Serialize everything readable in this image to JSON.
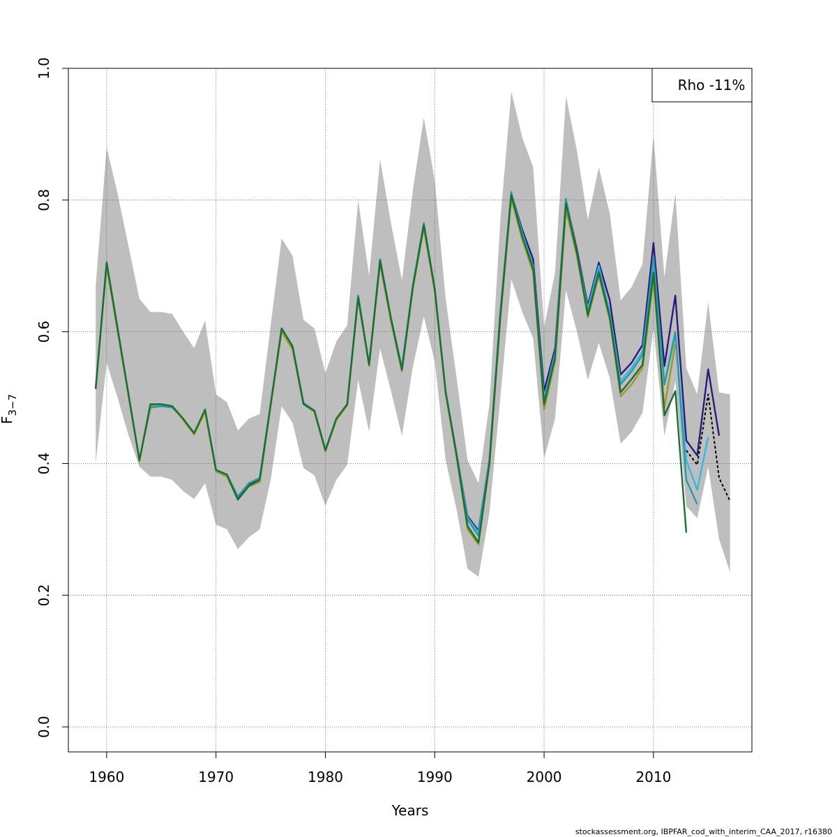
{
  "chart_data": {
    "type": "line",
    "xlabel": "Years",
    "ylabel_main": "F",
    "ylabel_sub": "3−7",
    "xlim": [
      1956.5,
      2019
    ],
    "ylim": [
      -0.038,
      1.0
    ],
    "xticks": [
      {
        "value": 1960,
        "label": "1960"
      },
      {
        "value": 1970,
        "label": "1970"
      },
      {
        "value": 1980,
        "label": "1980"
      },
      {
        "value": 1990,
        "label": "1990"
      },
      {
        "value": 2000,
        "label": "2000"
      },
      {
        "value": 2010,
        "label": "2010"
      }
    ],
    "yticks": [
      {
        "value": 0.0,
        "label": "0.0"
      },
      {
        "value": 0.2,
        "label": "0.2"
      },
      {
        "value": 0.4,
        "label": "0.4"
      },
      {
        "value": 0.6,
        "label": "0.6"
      },
      {
        "value": 0.8,
        "label": "0.8"
      },
      {
        "value": 1.0,
        "label": "1.0"
      }
    ],
    "grid": true,
    "legend": {
      "position": "top-right",
      "text": "Rho -11%"
    },
    "colors": {
      "band": "#bebebe",
      "grid": "#555555"
    },
    "band": {
      "x": [
        1959,
        1960,
        1961,
        1962,
        1963,
        1964,
        1965,
        1966,
        1967,
        1968,
        1969,
        1970,
        1971,
        1972,
        1973,
        1974,
        1975,
        1976,
        1977,
        1978,
        1979,
        1980,
        1981,
        1982,
        1983,
        1984,
        1985,
        1986,
        1987,
        1988,
        1989,
        1990,
        1991,
        1992,
        1993,
        1994,
        1995,
        1996,
        1997,
        1998,
        1999,
        2000,
        2001,
        2002,
        2003,
        2004,
        2005,
        2006,
        2007,
        2008,
        2009,
        2010,
        2011,
        2012,
        2013,
        2014,
        2015,
        2016,
        2017
      ],
      "upper": [
        0.67,
        0.88,
        0.81,
        0.73,
        0.65,
        0.63,
        0.63,
        0.627,
        0.6,
        0.575,
        0.617,
        0.505,
        0.493,
        0.45,
        0.468,
        0.475,
        0.61,
        0.742,
        0.715,
        0.618,
        0.605,
        0.537,
        0.585,
        0.61,
        0.8,
        0.685,
        0.862,
        0.765,
        0.678,
        0.815,
        0.925,
        0.83,
        0.65,
        0.53,
        0.405,
        0.37,
        0.49,
        0.77,
        0.965,
        0.895,
        0.85,
        0.607,
        0.69,
        0.958,
        0.875,
        0.77,
        0.85,
        0.78,
        0.648,
        0.668,
        0.703,
        0.898,
        0.683,
        0.81,
        0.545,
        0.505,
        0.645,
        0.508,
        0.505
      ],
      "lower": [
        0.4,
        0.553,
        0.5,
        0.443,
        0.395,
        0.38,
        0.38,
        0.375,
        0.358,
        0.346,
        0.37,
        0.307,
        0.3,
        0.27,
        0.288,
        0.3,
        0.375,
        0.487,
        0.462,
        0.393,
        0.382,
        0.336,
        0.375,
        0.398,
        0.527,
        0.448,
        0.575,
        0.51,
        0.442,
        0.547,
        0.623,
        0.555,
        0.405,
        0.33,
        0.24,
        0.228,
        0.325,
        0.5,
        0.68,
        0.63,
        0.59,
        0.408,
        0.468,
        0.663,
        0.6,
        0.527,
        0.583,
        0.53,
        0.43,
        0.448,
        0.477,
        0.605,
        0.442,
        0.525,
        0.335,
        0.317,
        0.395,
        0.285,
        0.235
      ]
    },
    "series": [
      {
        "color": "#2a1b7a",
        "dashed": false,
        "x": [
          1959,
          1960,
          1961,
          1962,
          1963,
          1964,
          1965,
          1966,
          1967,
          1968,
          1969,
          1970,
          1971,
          1972,
          1973,
          1974,
          1975,
          1976,
          1977,
          1978,
          1979,
          1980,
          1981,
          1982,
          1983,
          1984,
          1985,
          1986,
          1987,
          1988,
          1989,
          1990,
          1991,
          1992,
          1993,
          1994,
          1995,
          1996,
          1997,
          1998,
          1999,
          2000,
          2001,
          2002,
          2003,
          2004,
          2005,
          2006,
          2007,
          2008,
          2009,
          2010,
          2011,
          2012,
          2013,
          2014,
          2015,
          2016
        ],
        "y": [
          0.515,
          0.705,
          0.605,
          0.505,
          0.405,
          0.485,
          0.487,
          0.485,
          0.468,
          0.445,
          0.48,
          0.39,
          0.383,
          0.348,
          0.368,
          0.378,
          0.49,
          0.605,
          0.578,
          0.492,
          0.48,
          0.42,
          0.468,
          0.49,
          0.655,
          0.55,
          0.71,
          0.62,
          0.545,
          0.67,
          0.765,
          0.665,
          0.508,
          0.415,
          0.32,
          0.298,
          0.405,
          0.63,
          0.81,
          0.755,
          0.71,
          0.51,
          0.575,
          0.8,
          0.725,
          0.64,
          0.705,
          0.648,
          0.535,
          0.553,
          0.58,
          0.735,
          0.548,
          0.655,
          0.435,
          0.412,
          0.543,
          0.442
        ]
      },
      {
        "color": "#35b8e0",
        "dashed": false,
        "x": [
          1959,
          1960,
          1961,
          1962,
          1963,
          1964,
          1965,
          1966,
          1967,
          1968,
          1969,
          1970,
          1971,
          1972,
          1973,
          1974,
          1975,
          1976,
          1977,
          1978,
          1979,
          1980,
          1981,
          1982,
          1983,
          1984,
          1985,
          1986,
          1987,
          1988,
          1989,
          1990,
          1991,
          1992,
          1993,
          1994,
          1995,
          1996,
          1997,
          1998,
          1999,
          2000,
          2001,
          2002,
          2003,
          2004,
          2005,
          2006,
          2007,
          2008,
          2009,
          2010,
          2011,
          2012,
          2013,
          2014,
          2015
        ],
        "y": [
          0.515,
          0.705,
          0.605,
          0.505,
          0.405,
          0.485,
          0.487,
          0.485,
          0.468,
          0.446,
          0.48,
          0.39,
          0.383,
          0.35,
          0.37,
          0.378,
          0.49,
          0.605,
          0.578,
          0.492,
          0.48,
          0.42,
          0.468,
          0.49,
          0.655,
          0.55,
          0.71,
          0.62,
          0.545,
          0.67,
          0.765,
          0.665,
          0.508,
          0.415,
          0.318,
          0.295,
          0.403,
          0.628,
          0.81,
          0.75,
          0.7,
          0.498,
          0.568,
          0.8,
          0.72,
          0.635,
          0.7,
          0.63,
          0.525,
          0.545,
          0.57,
          0.705,
          0.52,
          0.595,
          0.405,
          0.36,
          0.44
        ]
      },
      {
        "color": "#2a9aa8",
        "dashed": false,
        "x": [
          1959,
          1960,
          1961,
          1962,
          1963,
          1964,
          1965,
          1966,
          1967,
          1968,
          1969,
          1970,
          1971,
          1972,
          1973,
          1974,
          1975,
          1976,
          1977,
          1978,
          1979,
          1980,
          1981,
          1982,
          1983,
          1984,
          1985,
          1986,
          1987,
          1988,
          1989,
          1990,
          1991,
          1992,
          1993,
          1994,
          1995,
          1996,
          1997,
          1998,
          1999,
          2000,
          2001,
          2002,
          2003,
          2004,
          2005,
          2006,
          2007,
          2008,
          2009,
          2010,
          2011,
          2012,
          2013,
          2014
        ],
        "y": [
          0.515,
          0.705,
          0.605,
          0.505,
          0.405,
          0.485,
          0.487,
          0.485,
          0.468,
          0.446,
          0.48,
          0.39,
          0.383,
          0.35,
          0.37,
          0.378,
          0.49,
          0.605,
          0.578,
          0.492,
          0.48,
          0.42,
          0.468,
          0.49,
          0.655,
          0.55,
          0.71,
          0.62,
          0.545,
          0.67,
          0.765,
          0.665,
          0.508,
          0.415,
          0.315,
          0.29,
          0.4,
          0.625,
          0.812,
          0.745,
          0.7,
          0.495,
          0.565,
          0.802,
          0.72,
          0.63,
          0.695,
          0.625,
          0.52,
          0.54,
          0.565,
          0.715,
          0.52,
          0.6,
          0.375,
          0.338
        ]
      },
      {
        "color": "#9a9a2a",
        "dashed": false,
        "x": [
          1959,
          1960,
          1961,
          1962,
          1963,
          1964,
          1965,
          1966,
          1967,
          1968,
          1969,
          1970,
          1971,
          1972,
          1973,
          1974,
          1975,
          1976,
          1977,
          1978,
          1979,
          1980,
          1981,
          1982,
          1983,
          1984,
          1985,
          1986,
          1987,
          1988,
          1989,
          1990,
          1991,
          1992,
          1993,
          1994,
          1995,
          1996,
          1997,
          1998,
          1999,
          2000,
          2001,
          2002,
          2003,
          2004,
          2005,
          2006,
          2007,
          2008,
          2009,
          2010,
          2011,
          2012
        ],
        "y": [
          0.515,
          0.7,
          0.6,
          0.503,
          0.403,
          0.488,
          0.49,
          0.487,
          0.466,
          0.444,
          0.478,
          0.388,
          0.38,
          0.345,
          0.365,
          0.372,
          0.487,
          0.6,
          0.573,
          0.49,
          0.478,
          0.418,
          0.466,
          0.488,
          0.65,
          0.548,
          0.703,
          0.615,
          0.54,
          0.665,
          0.758,
          0.66,
          0.505,
          0.41,
          0.3,
          0.277,
          0.398,
          0.62,
          0.802,
          0.74,
          0.69,
          0.482,
          0.555,
          0.785,
          0.715,
          0.622,
          0.685,
          0.618,
          0.502,
          0.52,
          0.545,
          0.68,
          0.485,
          0.582
        ]
      },
      {
        "color": "#1a6e32",
        "dashed": false,
        "x": [
          1959,
          1960,
          1961,
          1962,
          1963,
          1964,
          1965,
          1966,
          1967,
          1968,
          1969,
          1970,
          1971,
          1972,
          1973,
          1974,
          1975,
          1976,
          1977,
          1978,
          1979,
          1980,
          1981,
          1982,
          1983,
          1984,
          1985,
          1986,
          1987,
          1988,
          1989,
          1990,
          1991,
          1992,
          1993,
          1994,
          1995,
          1996,
          1997,
          1998,
          1999,
          2000,
          2001,
          2002,
          2003,
          2004,
          2005,
          2006,
          2007,
          2008,
          2009,
          2010,
          2011,
          2012,
          2013
        ],
        "y": [
          0.513,
          0.705,
          0.605,
          0.505,
          0.405,
          0.49,
          0.49,
          0.487,
          0.468,
          0.446,
          0.482,
          0.39,
          0.383,
          0.345,
          0.366,
          0.375,
          0.49,
          0.605,
          0.578,
          0.49,
          0.48,
          0.42,
          0.468,
          0.49,
          0.652,
          0.55,
          0.708,
          0.62,
          0.542,
          0.668,
          0.762,
          0.665,
          0.508,
          0.412,
          0.305,
          0.28,
          0.4,
          0.625,
          0.808,
          0.745,
          0.695,
          0.49,
          0.56,
          0.795,
          0.72,
          0.625,
          0.69,
          0.622,
          0.508,
          0.528,
          0.55,
          0.69,
          0.473,
          0.51,
          0.295
        ]
      },
      {
        "color": "#000000",
        "dashed": true,
        "x": [
          2013,
          2014,
          2015,
          2016,
          2017
        ],
        "y": [
          0.42,
          0.398,
          0.505,
          0.378,
          0.343
        ]
      }
    ]
  },
  "footer": "stockassessment.org, IBPFAR_cod_with_interim_CAA_2017, r16380"
}
